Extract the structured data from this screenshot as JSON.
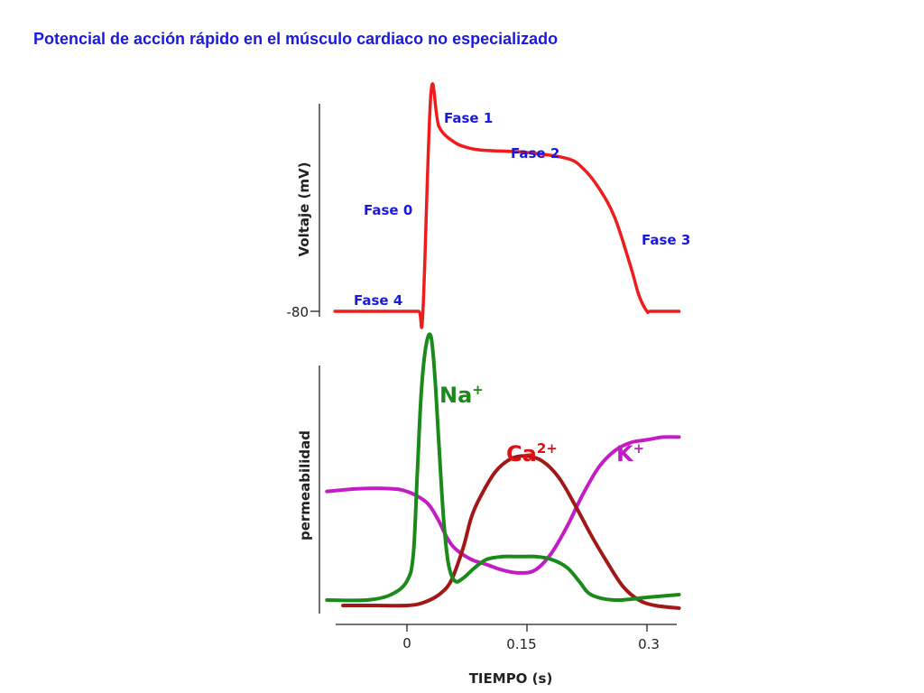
{
  "title": "Potencial de acción rápido en el músculo cardiaco no especializado",
  "colors": {
    "title": "#1a1adf",
    "phase_label": "#1a1adf",
    "voltage_curve": "#ee1c1c",
    "na": "#1a8a1a",
    "ca_curve": "#a01818",
    "ca_label": "#e01010",
    "k": "#c41cc4",
    "axis": "#222222"
  },
  "chart_data": [
    {
      "type": "line",
      "ylabel": "Voltaje (mV)",
      "ytick_label": "-80",
      "phases": [
        "Fase 0",
        "Fase 1",
        "Fase 2",
        "Fase 3",
        "Fase 4"
      ],
      "series": [
        {
          "x": [
            -0.09,
            -0.05,
            0.0,
            0.015,
            0.02,
            0.03,
            0.04,
            0.06,
            0.08,
            0.1,
            0.15,
            0.2,
            0.22,
            0.24,
            0.26,
            0.28,
            0.29,
            0.3,
            0.305,
            0.34
          ],
          "y": [
            -80,
            -80,
            -80,
            -80,
            -80,
            30,
            13,
            5,
            2,
            1,
            0,
            -3,
            -8,
            -18,
            -33,
            -58,
            -72,
            -80,
            -80,
            -80
          ]
        }
      ]
    },
    {
      "type": "line",
      "xlabel": "TIEMPO (s)",
      "ylabel": "permeabilidad",
      "xticks": [
        "0",
        "0.15",
        "0.3"
      ],
      "series": [
        {
          "name": "Na+",
          "label_main": "Na",
          "label_sup": "+",
          "x": [
            -0.1,
            -0.05,
            -0.02,
            0.0,
            0.008,
            0.013,
            0.018,
            0.024,
            0.03,
            0.035,
            0.04,
            0.046,
            0.052,
            0.06,
            0.07,
            0.085,
            0.1,
            0.12,
            0.14,
            0.16,
            0.18,
            0.2,
            0.215,
            0.23,
            0.26,
            0.3,
            0.34
          ],
          "y": [
            0.03,
            0.03,
            0.05,
            0.1,
            0.2,
            0.5,
            0.8,
            0.97,
            1.0,
            0.85,
            0.6,
            0.32,
            0.16,
            0.1,
            0.11,
            0.15,
            0.18,
            0.19,
            0.19,
            0.19,
            0.18,
            0.15,
            0.1,
            0.05,
            0.03,
            0.04,
            0.05
          ]
        },
        {
          "name": "Ca2+",
          "label_main": "Ca",
          "label_sup": "2+",
          "x": [
            -0.08,
            -0.04,
            0.0,
            0.02,
            0.04,
            0.055,
            0.07,
            0.08,
            0.09,
            0.11,
            0.13,
            0.15,
            0.17,
            0.19,
            0.21,
            0.23,
            0.25,
            0.27,
            0.29,
            0.31,
            0.34
          ],
          "y": [
            0.01,
            0.01,
            0.01,
            0.02,
            0.05,
            0.1,
            0.22,
            0.33,
            0.4,
            0.5,
            0.55,
            0.56,
            0.54,
            0.48,
            0.38,
            0.27,
            0.17,
            0.08,
            0.03,
            0.01,
            0.0
          ]
        },
        {
          "name": "K+",
          "label_main": "K",
          "label_sup": "+",
          "x": [
            -0.1,
            -0.06,
            -0.02,
            0.0,
            0.02,
            0.03,
            0.04,
            0.05,
            0.06,
            0.08,
            0.1,
            0.12,
            0.14,
            0.16,
            0.18,
            0.2,
            0.22,
            0.24,
            0.26,
            0.28,
            0.3,
            0.32,
            0.34
          ],
          "y": [
            0.43,
            0.44,
            0.44,
            0.43,
            0.4,
            0.37,
            0.32,
            0.26,
            0.22,
            0.18,
            0.16,
            0.14,
            0.13,
            0.14,
            0.2,
            0.3,
            0.42,
            0.52,
            0.58,
            0.61,
            0.62,
            0.63,
            0.63
          ]
        }
      ]
    }
  ]
}
